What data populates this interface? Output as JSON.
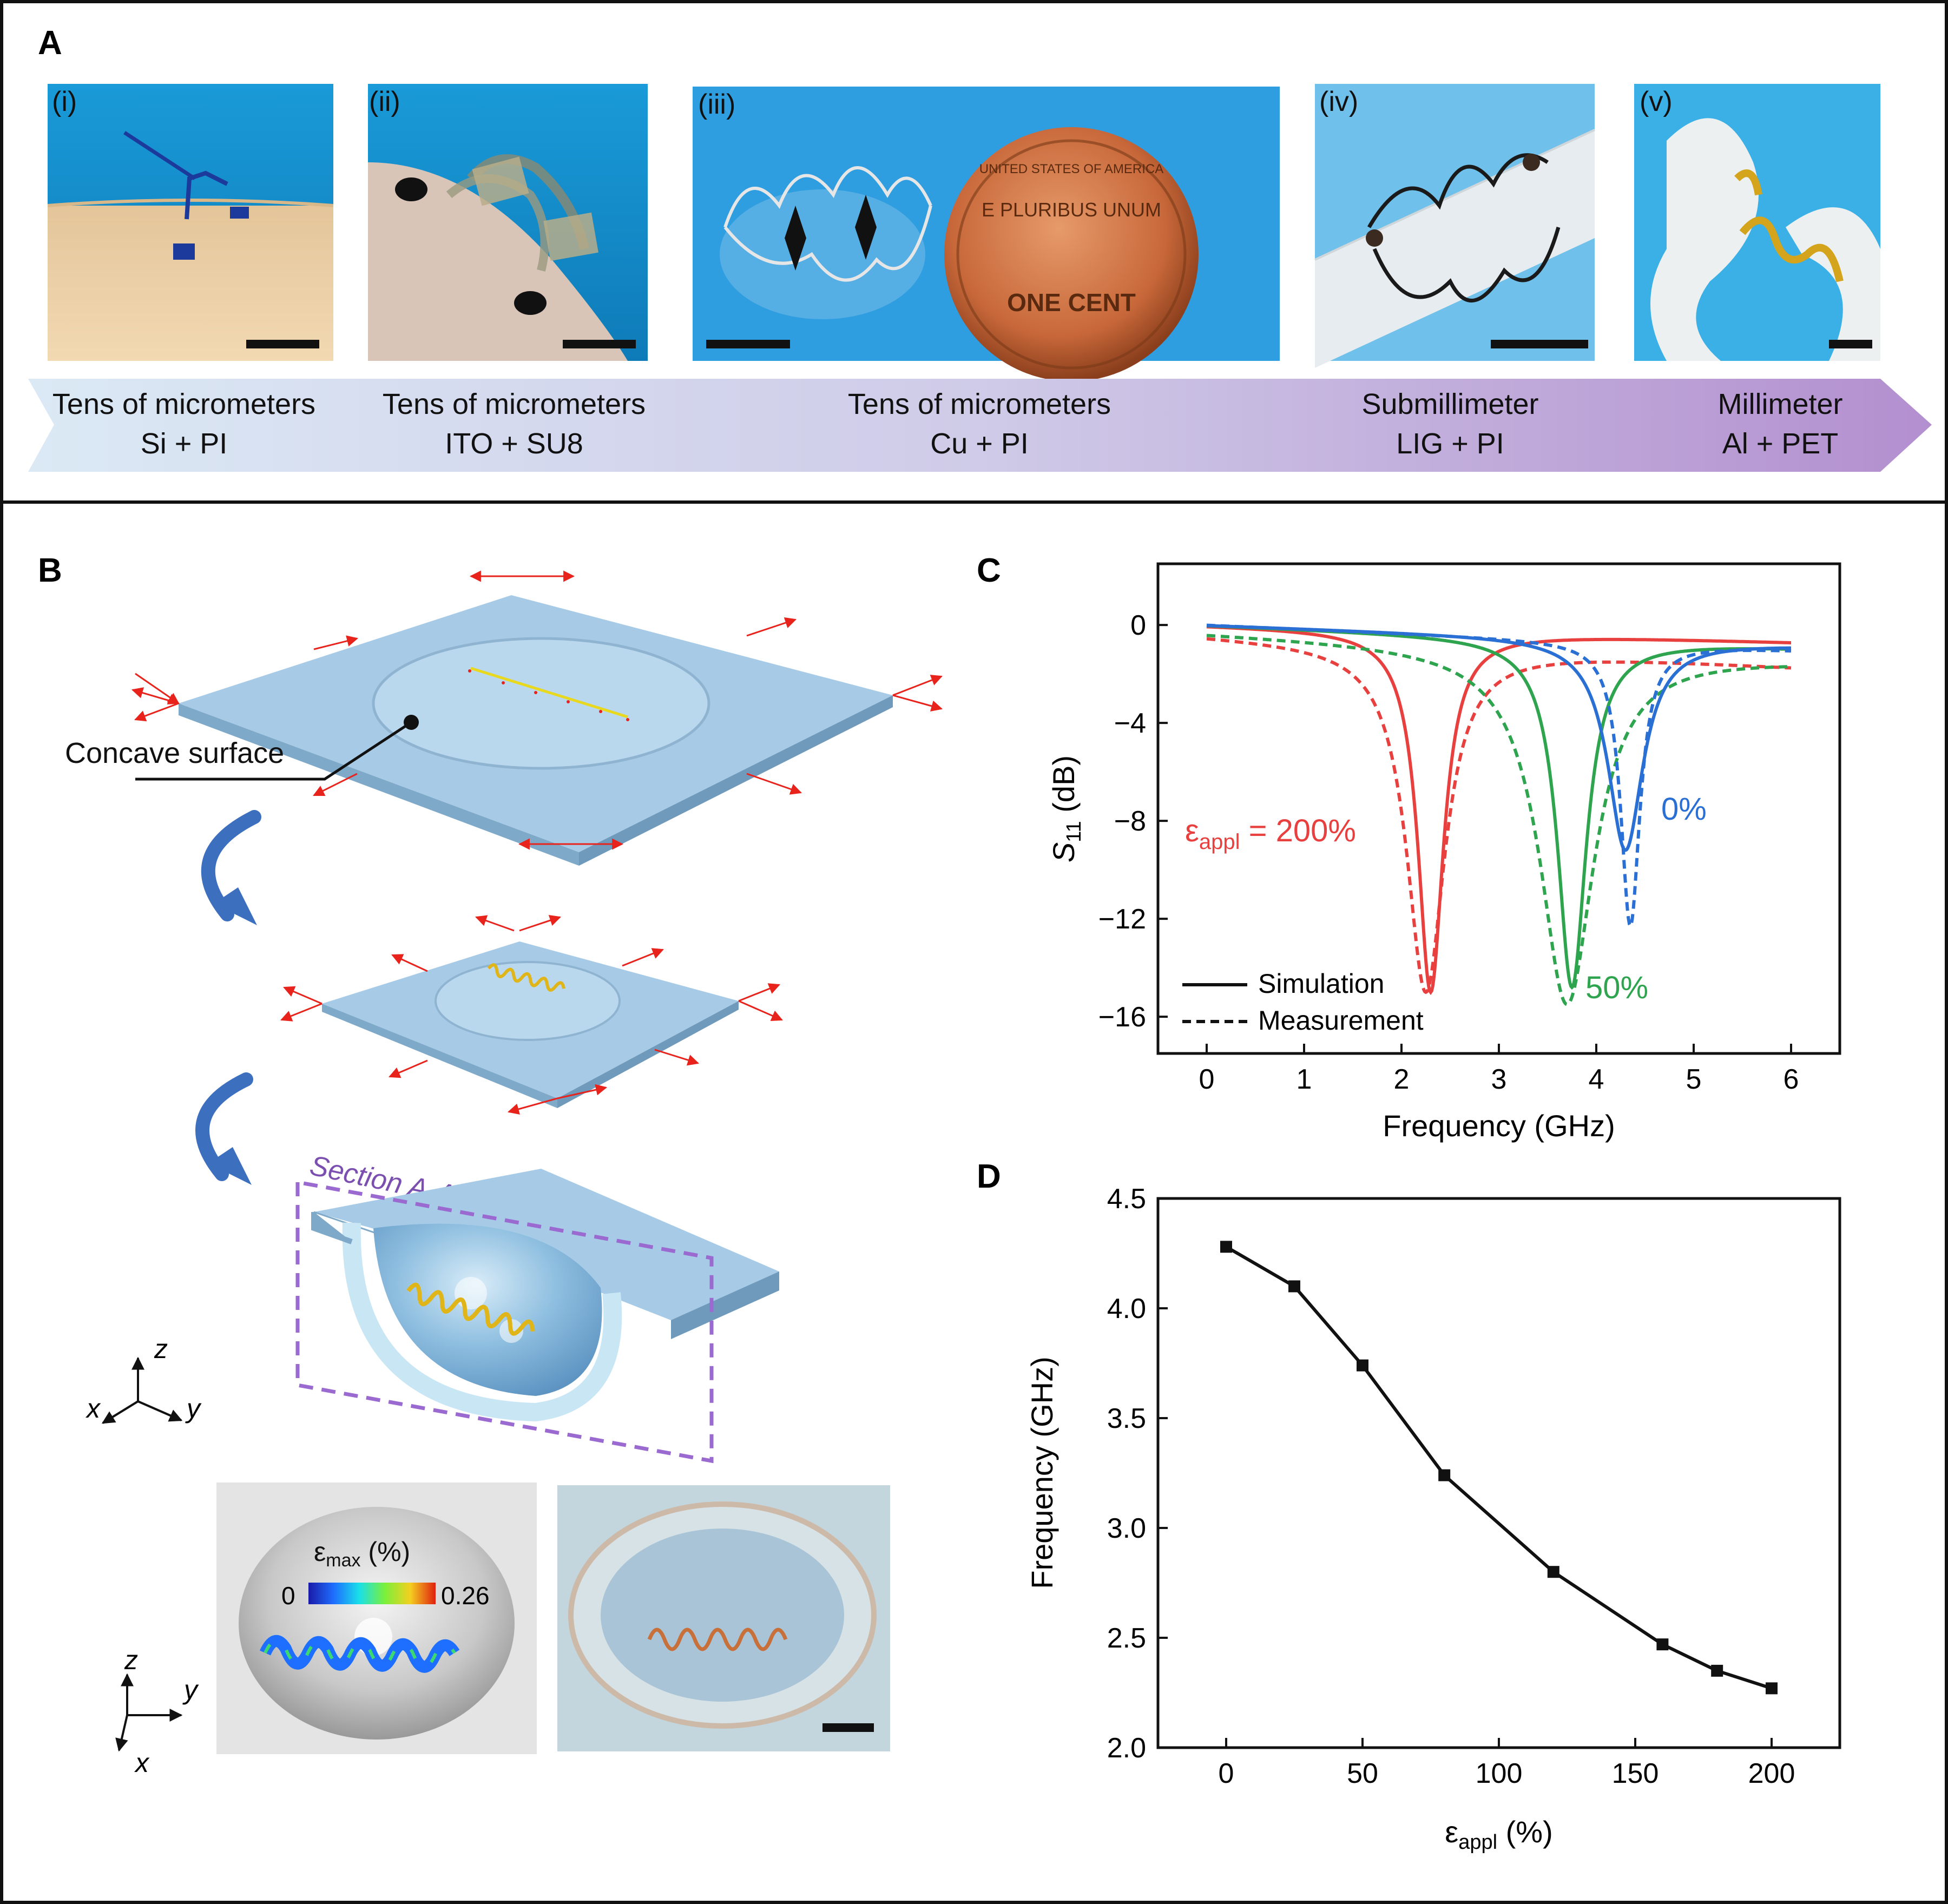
{
  "panels": {
    "a": {
      "label": "A",
      "photos": [
        {
          "label": "(i)",
          "scale": "Tens of micrometers",
          "materials": "Si + PI"
        },
        {
          "label": "(ii)",
          "scale": "Tens of micrometers",
          "materials": "ITO + SU8"
        },
        {
          "label": "(iii)",
          "scale": "Tens of micrometers",
          "materials": "Cu + PI"
        },
        {
          "label": "(iv)",
          "scale": "Submillimeter",
          "materials": "LIG + PI"
        },
        {
          "label": "(v)",
          "scale": "Millimeter",
          "materials": "Al + PET"
        }
      ],
      "coin_text": {
        "top": "UNITED STATES OF AMERICA",
        "motto": "E PLURIBUS UNUM",
        "value": "ONE CENT"
      }
    },
    "b": {
      "label": "B",
      "concave_label": "Concave surface",
      "section_label": "Section A-A",
      "axes_top": {
        "z": "z",
        "x": "x",
        "y": "y"
      },
      "axes_bottom": {
        "z": "z",
        "y": "y",
        "x": "x"
      },
      "colorbar": {
        "title": "ε",
        "title_sub": "max",
        "title_unit": " (%)",
        "min": "0",
        "max": "0.26"
      }
    },
    "c": {
      "label": "C"
    },
    "d": {
      "label": "D"
    }
  },
  "colors": {
    "red": "#e8403f",
    "green": "#2ea44f",
    "blue": "#2a6fd4",
    "substrate": "#a9cfe8"
  },
  "chart_data": [
    {
      "id": "C",
      "type": "line",
      "xlabel": "Frequency (GHz)",
      "ylabel_main": "S",
      "ylabel_sub": "11",
      "ylabel_unit": " (dB)",
      "xlim": [
        -0.5,
        6.5
      ],
      "ylim": [
        -17.5,
        2.5
      ],
      "xticks": [
        0,
        1,
        2,
        3,
        4,
        5,
        6
      ],
      "yticks": [
        0,
        -4,
        -8,
        -12,
        -16
      ],
      "ytick_labels": [
        "0",
        "−4",
        "−8",
        "−12",
        "−16"
      ],
      "legend": [
        {
          "label": "Simulation",
          "style": "solid"
        },
        {
          "label": "Measurement",
          "style": "dashed"
        }
      ],
      "annotations": [
        {
          "text": "ε",
          "sub": "appl",
          "rest": " = 200%",
          "color": "#e8403f"
        },
        {
          "text": "50%",
          "color": "#2ea44f"
        },
        {
          "text": "0%",
          "color": "#2a6fd4"
        }
      ],
      "series": [
        {
          "strain": "200%",
          "kind": "Simulation",
          "color": "#e8403f",
          "style": "solid",
          "f0": 2.3,
          "depth": -15.0,
          "width": 0.16,
          "base_lo": 0,
          "base_hi": -0.7
        },
        {
          "strain": "200%",
          "kind": "Measurement",
          "color": "#e8403f",
          "style": "dashed",
          "f0": 2.25,
          "depth": -15.0,
          "width": 0.24,
          "base_lo": -0.4,
          "base_hi": -1.7
        },
        {
          "strain": "50%",
          "kind": "Simulation",
          "color": "#2ea44f",
          "style": "solid",
          "f0": 3.75,
          "depth": -14.8,
          "width": 0.18,
          "base_lo": 0,
          "base_hi": -0.9
        },
        {
          "strain": "50%",
          "kind": "Measurement",
          "color": "#2ea44f",
          "style": "dashed",
          "f0": 3.7,
          "depth": -15.5,
          "width": 0.34,
          "base_lo": -0.3,
          "base_hi": -1.4
        },
        {
          "strain": "0%",
          "kind": "Simulation",
          "color": "#2a6fd4",
          "style": "solid",
          "f0": 4.3,
          "depth": -9.2,
          "width": 0.22,
          "base_lo": 0,
          "base_hi": -0.8
        },
        {
          "strain": "0%",
          "kind": "Measurement",
          "color": "#2a6fd4",
          "style": "dashed",
          "f0": 4.35,
          "depth": -12.3,
          "width": 0.12,
          "base_lo": 0,
          "base_hi": -1.0
        }
      ]
    },
    {
      "id": "D",
      "type": "line",
      "xlabel_main": "ε",
      "xlabel_sub": "appl",
      "xlabel_unit": " (%)",
      "ylabel": "Frequency (GHz)",
      "xlim": [
        -25,
        225
      ],
      "ylim": [
        2.0,
        4.5
      ],
      "xticks": [
        0,
        50,
        100,
        150,
        200
      ],
      "yticks": [
        2.0,
        2.5,
        3.0,
        3.5,
        4.0,
        4.5
      ],
      "ytick_labels": [
        "2.0",
        "2.5",
        "3.0",
        "3.5",
        "4.0",
        "4.5"
      ],
      "x": [
        0,
        25,
        50,
        80,
        120,
        160,
        180,
        200
      ],
      "y": [
        4.28,
        4.1,
        3.74,
        3.24,
        2.8,
        2.47,
        2.35,
        2.27
      ]
    }
  ]
}
